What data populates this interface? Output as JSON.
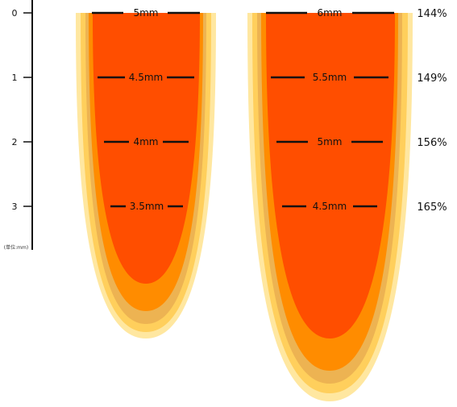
{
  "axis": {
    "ticks": [
      {
        "value": 0,
        "label": "0"
      },
      {
        "value": 1,
        "label": "1"
      },
      {
        "value": 2,
        "label": "2"
      },
      {
        "value": 3,
        "label": "3"
      }
    ],
    "unit_note": "(単位:mm)"
  },
  "left_shape": {
    "levels": [
      {
        "depth": 0,
        "label": "5mm"
      },
      {
        "depth": 1,
        "label": "4.5mm"
      },
      {
        "depth": 2,
        "label": "4mm"
      },
      {
        "depth": 3,
        "label": "3.5mm"
      }
    ]
  },
  "right_shape": {
    "levels": [
      {
        "depth": 0,
        "label": "6mm"
      },
      {
        "depth": 1,
        "label": "5.5mm"
      },
      {
        "depth": 2,
        "label": "5mm"
      },
      {
        "depth": 3,
        "label": "4.5mm"
      }
    ]
  },
  "ratios": [
    {
      "depth": 0,
      "label": "144%"
    },
    {
      "depth": 1,
      "label": "149%"
    },
    {
      "depth": 2,
      "label": "156%"
    },
    {
      "depth": 3,
      "label": "165%"
    }
  ],
  "colors": {
    "core": "#FF4E00",
    "mid": "#FF8C00",
    "tan": "#EDB352",
    "outer": "#FFCF5C",
    "halo": "#FFE7A0",
    "ink": "#111111"
  }
}
